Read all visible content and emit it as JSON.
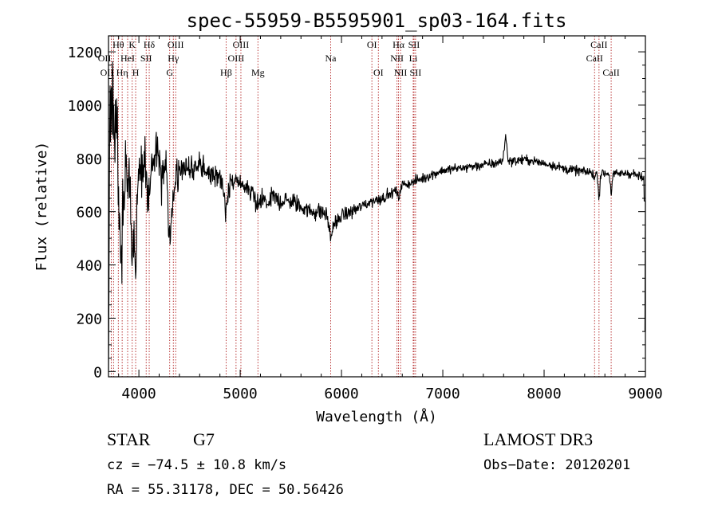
{
  "chart_data": {
    "type": "line",
    "title": "spec-55959-B5595901_sp03-164.fits",
    "xlabel": "Wavelength (Å)",
    "ylabel": "Flux (relative)",
    "xlim": [
      3700,
      9000
    ],
    "ylim": [
      -20,
      1260
    ],
    "xticks": [
      4000,
      5000,
      6000,
      7000,
      8000,
      9000
    ],
    "yticks": [
      0,
      200,
      400,
      600,
      800,
      1000,
      1200
    ],
    "grid": false,
    "line_color": "#000000",
    "marker_color": "#b22222",
    "anchors": [
      [
        3700,
        720
      ],
      [
        3720,
        880
      ],
      [
        3760,
        760
      ],
      [
        3800,
        800
      ],
      [
        3850,
        740
      ],
      [
        3900,
        700
      ],
      [
        3950,
        730
      ],
      [
        4000,
        720
      ],
      [
        4050,
        770
      ],
      [
        4100,
        760
      ],
      [
        4150,
        820
      ],
      [
        4200,
        790
      ],
      [
        4250,
        760
      ],
      [
        4300,
        740
      ],
      [
        4350,
        760
      ],
      [
        4400,
        780
      ],
      [
        4500,
        760
      ],
      [
        4600,
        770
      ],
      [
        4700,
        740
      ],
      [
        4800,
        730
      ],
      [
        4861,
        700
      ],
      [
        4900,
        710
      ],
      [
        5000,
        700
      ],
      [
        5100,
        680
      ],
      [
        5200,
        670
      ],
      [
        5300,
        660
      ],
      [
        5400,
        640
      ],
      [
        5500,
        640
      ],
      [
        5600,
        620
      ],
      [
        5700,
        600
      ],
      [
        5800,
        600
      ],
      [
        5900,
        575
      ],
      [
        5950,
        555
      ],
      [
        6000,
        585
      ],
      [
        6100,
        600
      ],
      [
        6200,
        620
      ],
      [
        6300,
        640
      ],
      [
        6400,
        650
      ],
      [
        6500,
        670
      ],
      [
        6563,
        690
      ],
      [
        6600,
        700
      ],
      [
        6700,
        710
      ],
      [
        6800,
        725
      ],
      [
        6900,
        740
      ],
      [
        7000,
        755
      ],
      [
        7100,
        760
      ],
      [
        7200,
        765
      ],
      [
        7300,
        770
      ],
      [
        7400,
        775
      ],
      [
        7500,
        780
      ],
      [
        7600,
        790
      ],
      [
        7700,
        790
      ],
      [
        7800,
        795
      ],
      [
        7900,
        790
      ],
      [
        8000,
        780
      ],
      [
        8100,
        775
      ],
      [
        8200,
        760
      ],
      [
        8300,
        755
      ],
      [
        8400,
        750
      ],
      [
        8500,
        745
      ],
      [
        8600,
        745
      ],
      [
        8700,
        740
      ],
      [
        8800,
        745
      ],
      [
        8900,
        740
      ],
      [
        9000,
        720
      ]
    ],
    "absorption_features": [
      [
        3820,
        390,
        16
      ],
      [
        3934,
        370,
        10
      ],
      [
        3968,
        410,
        10
      ],
      [
        4102,
        130,
        12
      ],
      [
        4227,
        60,
        12
      ],
      [
        4305,
        270,
        14
      ],
      [
        4340,
        110,
        12
      ],
      [
        4383,
        60,
        10
      ],
      [
        4861,
        90,
        16
      ],
      [
        5172,
        50,
        20
      ],
      [
        5270,
        40,
        20
      ],
      [
        5893,
        70,
        16
      ],
      [
        6563,
        40,
        12
      ],
      [
        8498,
        25,
        6
      ],
      [
        8542,
        90,
        8
      ],
      [
        8662,
        70,
        8
      ]
    ],
    "emission_features": [
      [
        7620,
        90,
        12
      ],
      [
        3740,
        260,
        12
      ],
      [
        3770,
        220,
        10
      ]
    ],
    "noise_model": [
      [
        3700,
        220
      ],
      [
        4000,
        130
      ],
      [
        4500,
        50
      ],
      [
        5500,
        38
      ],
      [
        6500,
        20
      ],
      [
        9000,
        18
      ]
    ],
    "spectral_lines": [
      {
        "wavelength": 3727,
        "label": "OII",
        "row": 1,
        "anchor": "end"
      },
      {
        "wavelength": 3750,
        "label": "OII",
        "row": 2,
        "anchor": "end"
      },
      {
        "wavelength": 3797,
        "label": "Hθ",
        "row": 0,
        "anchor": "middle"
      },
      {
        "wavelength": 3835,
        "label": "Hη",
        "row": 2,
        "anchor": "middle"
      },
      {
        "wavelength": 3889,
        "label": "HeI",
        "row": 1,
        "anchor": "middle"
      },
      {
        "wavelength": 3934,
        "label": "K",
        "row": 0,
        "anchor": "middle"
      },
      {
        "wavelength": 3968,
        "label": "H",
        "row": 2,
        "anchor": "middle"
      },
      {
        "wavelength": 4072,
        "label": "SII",
        "row": 1,
        "anchor": "middle"
      },
      {
        "wavelength": 4102,
        "label": "Hδ",
        "row": 0,
        "anchor": "middle"
      },
      {
        "wavelength": 4304,
        "label": "G",
        "row": 2,
        "anchor": "middle"
      },
      {
        "wavelength": 4340,
        "label": "Hγ",
        "row": 1,
        "anchor": "middle"
      },
      {
        "wavelength": 4363,
        "label": "OIII",
        "row": 0,
        "anchor": "middle"
      },
      {
        "wavelength": 4861,
        "label": "Hβ",
        "row": 2,
        "anchor": "middle"
      },
      {
        "wavelength": 4959,
        "label": "OIII",
        "row": 1,
        "anchor": "middle"
      },
      {
        "wavelength": 5007,
        "label": "OIII",
        "row": 0,
        "anchor": "middle"
      },
      {
        "wavelength": 5175,
        "label": "Mg",
        "row": 2,
        "anchor": "middle"
      },
      {
        "wavelength": 5893,
        "label": "Na",
        "row": 1,
        "anchor": "middle"
      },
      {
        "wavelength": 6300,
        "label": "OI",
        "row": 0,
        "anchor": "middle"
      },
      {
        "wavelength": 6364,
        "label": "OI",
        "row": 2,
        "anchor": "middle"
      },
      {
        "wavelength": 6548,
        "label": "NII",
        "row": 1,
        "anchor": "middle"
      },
      {
        "wavelength": 6563,
        "label": "Hα",
        "row": 0,
        "anchor": "middle"
      },
      {
        "wavelength": 6583,
        "label": "NII",
        "row": 2,
        "anchor": "middle"
      },
      {
        "wavelength": 6708,
        "label": "Li",
        "row": 1,
        "anchor": "middle"
      },
      {
        "wavelength": 6716,
        "label": "SII",
        "row": 0,
        "anchor": "middle"
      },
      {
        "wavelength": 6731,
        "label": "SII",
        "row": 2,
        "anchor": "middle"
      },
      {
        "wavelength": 8498,
        "label": "CaII",
        "row": 1,
        "anchor": "middle"
      },
      {
        "wavelength": 8542,
        "label": "CaII",
        "row": 0,
        "anchor": "middle"
      },
      {
        "wavelength": 8662,
        "label": "CaII",
        "row": 2,
        "anchor": "middle"
      }
    ]
  },
  "info": {
    "object_class": "STAR",
    "subclass": "G7",
    "redshift": "cz = −74.5 ± 10.8 km/s",
    "coordinates": "RA =  55.31178, DEC =  50.56426",
    "survey": "LAMOST DR3",
    "obs_date": "Obs−Date: 20120201"
  }
}
